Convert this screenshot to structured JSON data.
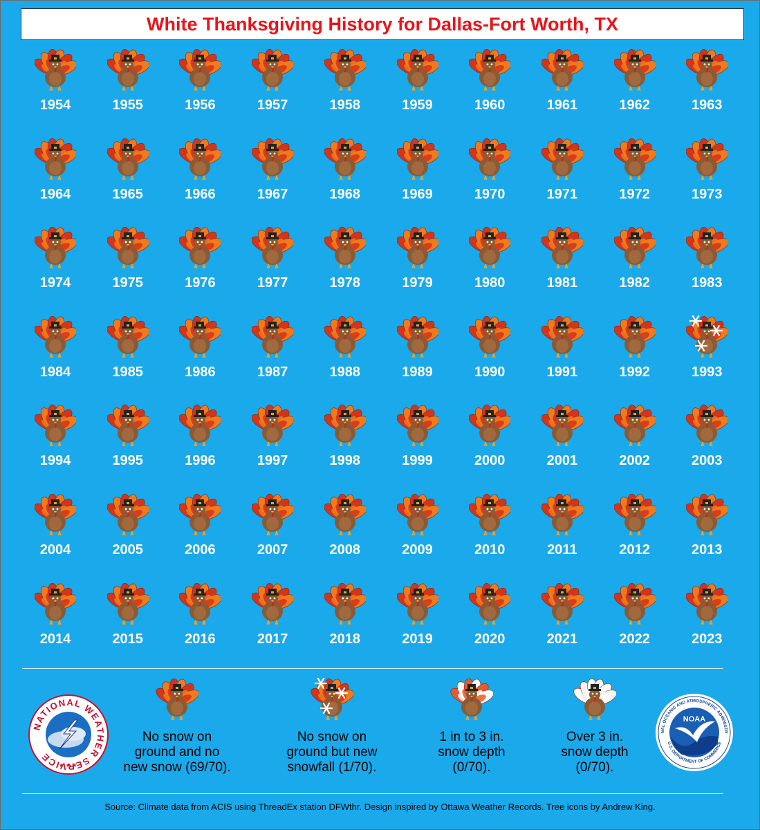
{
  "title": "White Thanksgiving History for Dallas-Fort Worth, TX",
  "chart_data": {
    "type": "table",
    "title": "White Thanksgiving History for Dallas-Fort Worth, TX",
    "categories": [
      "no_snow",
      "new_snowfall",
      "depth_1_to_3",
      "depth_over_3"
    ],
    "years": [
      1954,
      1955,
      1956,
      1957,
      1958,
      1959,
      1960,
      1961,
      1962,
      1963,
      1964,
      1965,
      1966,
      1967,
      1968,
      1969,
      1970,
      1971,
      1972,
      1973,
      1974,
      1975,
      1976,
      1977,
      1978,
      1979,
      1980,
      1981,
      1982,
      1983,
      1984,
      1985,
      1986,
      1987,
      1988,
      1989,
      1990,
      1991,
      1992,
      1993,
      1994,
      1995,
      1996,
      1997,
      1998,
      1999,
      2000,
      2001,
      2002,
      2003,
      2004,
      2005,
      2006,
      2007,
      2008,
      2009,
      2010,
      2011,
      2012,
      2013,
      2014,
      2015,
      2016,
      2017,
      2018,
      2019,
      2020,
      2021,
      2022,
      2023
    ],
    "status": [
      "no_snow",
      "no_snow",
      "no_snow",
      "no_snow",
      "no_snow",
      "no_snow",
      "no_snow",
      "no_snow",
      "no_snow",
      "no_snow",
      "no_snow",
      "no_snow",
      "no_snow",
      "no_snow",
      "no_snow",
      "no_snow",
      "no_snow",
      "no_snow",
      "no_snow",
      "no_snow",
      "no_snow",
      "no_snow",
      "no_snow",
      "no_snow",
      "no_snow",
      "no_snow",
      "no_snow",
      "no_snow",
      "no_snow",
      "no_snow",
      "no_snow",
      "no_snow",
      "no_snow",
      "no_snow",
      "no_snow",
      "no_snow",
      "no_snow",
      "no_snow",
      "no_snow",
      "new_snowfall",
      "no_snow",
      "no_snow",
      "no_snow",
      "no_snow",
      "no_snow",
      "no_snow",
      "no_snow",
      "no_snow",
      "no_snow",
      "no_snow",
      "no_snow",
      "no_snow",
      "no_snow",
      "no_snow",
      "no_snow",
      "no_snow",
      "no_snow",
      "no_snow",
      "no_snow",
      "no_snow",
      "no_snow",
      "no_snow",
      "no_snow",
      "no_snow",
      "no_snow",
      "no_snow",
      "no_snow",
      "no_snow",
      "no_snow",
      "no_snow"
    ]
  },
  "legend": [
    {
      "key": "no_snow",
      "lines": [
        "No snow on",
        "ground and no",
        "new snow (69/70)."
      ]
    },
    {
      "key": "new_snowfall",
      "lines": [
        "No snow on",
        "ground but new",
        "snowfall (1/70)."
      ]
    },
    {
      "key": "depth_1_to_3",
      "lines": [
        "1 in to 3 in.",
        "snow depth",
        "(0/70)."
      ]
    },
    {
      "key": "depth_over_3",
      "lines": [
        "Over 3 in.",
        "snow depth",
        "(0/70)."
      ]
    }
  ],
  "logos": {
    "nws_text": "NATIONAL WEATHER SERVICE",
    "noaa_text": "NOAA",
    "noaa_ring_top": "NATIONAL OCEANIC AND ATMOSPHERIC ADMINISTRATION",
    "noaa_ring_bottom": "U.S. DEPARTMENT OF COMMERCE"
  },
  "source": "Source: Climate data from ACIS using ThreadEx station DFWthr. Design inspired by Ottawa Weather Records. Tree icons by Andrew King.",
  "colors": {
    "background": "#1aa9ea",
    "title": "#e8141b",
    "turkey_body": "#8b5a34",
    "feather_red": "#d2341c",
    "feather_orange": "#f07a1c",
    "white_feather": "#ffffff"
  }
}
